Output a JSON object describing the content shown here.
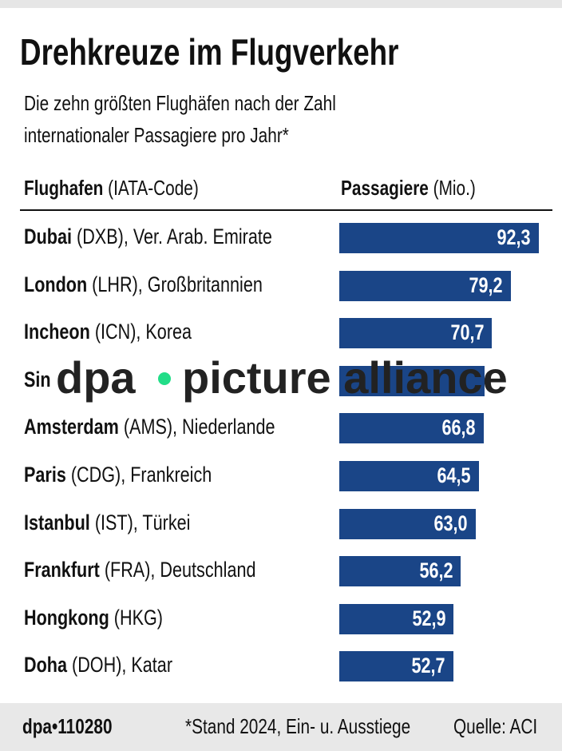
{
  "title": "Drehkreuze im Flugverkehr",
  "subtitle": [
    "Die zehn größten Flughäfen nach der Zahl",
    "internationaler Passagiere pro Jahr*"
  ],
  "header": {
    "col1_bold": "Flughafen",
    "col1_rest": " (IATA-Code)",
    "col2_bold": "Passagiere",
    "col2_rest": " (Mio.)"
  },
  "chart_data": {
    "type": "bar",
    "orientation": "horizontal",
    "bar_color": "#1a4587",
    "categories": [
      {
        "bold": "Dubai",
        "rest": " (DXB), Ver. Arab. Emirate"
      },
      {
        "bold": "London",
        "rest": " (LHR), Großbritannien"
      },
      {
        "bold": "Incheon",
        "rest": " (ICN), Korea"
      },
      {
        "bold": "Sin",
        "rest": ""
      },
      {
        "bold": "Amsterdam",
        "rest": " (AMS), Niederlande"
      },
      {
        "bold": "Paris",
        "rest": " (CDG), Frankreich"
      },
      {
        "bold": "Istanbul",
        "rest": " (IST), Türkei"
      },
      {
        "bold": "Frankfurt",
        "rest": " (FRA), Deutschland"
      },
      {
        "bold": "Hongkong",
        "rest": " (HKG)"
      },
      {
        "bold": "Doha",
        "rest": " (DOH), Katar"
      }
    ],
    "values": [
      92.3,
      79.2,
      70.7,
      67.2,
      66.8,
      64.5,
      63.0,
      56.2,
      52.9,
      52.7
    ],
    "labels": [
      "92,3",
      "79,2",
      "70,7",
      "",
      "66,8",
      "64,5",
      "63,0",
      "56,2",
      "52,9",
      "52,7"
    ],
    "xlim": [
      0,
      92.3
    ]
  },
  "watermark": {
    "left": "dpa",
    "right": "picture alliance",
    "dot_color": "#22dd88"
  },
  "footer": {
    "id": "dpa•110280",
    "note": "*Stand 2024, Ein- u. Ausstiege",
    "source": "Quelle: ACI"
  }
}
